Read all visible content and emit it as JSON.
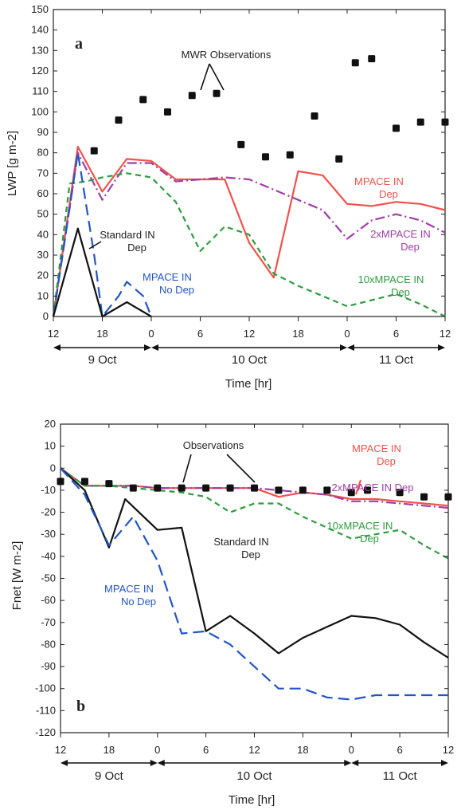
{
  "chart_data": [
    {
      "type": "line",
      "panel_label": "a",
      "ylabel": "LWP [g m-2]",
      "xlabel": "Time [hr]",
      "x_unit": "hours from 12 on 9 Oct",
      "xlim": [
        0,
        48
      ],
      "ylim": [
        0,
        150
      ],
      "y_ticks": [
        0,
        10,
        20,
        30,
        40,
        50,
        60,
        70,
        80,
        90,
        100,
        110,
        120,
        130,
        140,
        150
      ],
      "x_ticks": [
        0,
        6,
        12,
        18,
        24,
        30,
        36,
        42,
        48
      ],
      "x_tick_labels": [
        "12",
        "18",
        "0",
        "6",
        "12",
        "18",
        "0",
        "6",
        "12"
      ],
      "day_ranges": [
        {
          "label": "9 Oct",
          "start": 0,
          "end": 12
        },
        {
          "label": "10 Oct",
          "start": 12,
          "end": 36
        },
        {
          "label": "11 Oct",
          "start": 36,
          "end": 48
        }
      ],
      "observations": {
        "name": "MWR Observations",
        "x": [
          5,
          8,
          11,
          14,
          17,
          20,
          23,
          26,
          29,
          32,
          35,
          37,
          39,
          42,
          45,
          48
        ],
        "y": [
          81,
          96,
          106,
          100,
          108,
          109,
          84,
          78,
          79,
          98,
          77,
          124,
          126,
          92,
          95,
          95
        ]
      },
      "series": [
        {
          "name": "MPACE IN Dep",
          "label_lines": [
            "MPACE IN",
            "Dep"
          ],
          "color": "#f0524b",
          "dash": "solid",
          "x": [
            0,
            3,
            6,
            9,
            12,
            15,
            18,
            21,
            24,
            27,
            30,
            33,
            36,
            39,
            42,
            45,
            48
          ],
          "y": [
            0,
            83,
            61,
            77,
            76,
            67,
            67,
            67,
            36,
            19,
            71,
            69,
            55,
            54,
            56,
            55,
            52
          ]
        },
        {
          "name": "2xMPACE IN Dep",
          "label_lines": [
            "2xMPACE IN",
            "Dep"
          ],
          "color": "#a13ca8",
          "dash": "dashdot",
          "x": [
            0,
            3,
            6,
            9,
            12,
            15,
            18,
            21,
            24,
            27,
            30,
            33,
            36,
            39,
            42,
            45,
            48
          ],
          "y": [
            0,
            80,
            57,
            75,
            75,
            66,
            67,
            68,
            67,
            62,
            57,
            52,
            38,
            47,
            50,
            47,
            41
          ]
        },
        {
          "name": "10xMPACE IN Dep",
          "label_lines": [
            "10xMPACE IN",
            "Dep"
          ],
          "color": "#2e9b3e",
          "dash": "dashed",
          "x": [
            0,
            2,
            4,
            6,
            9,
            12,
            15,
            18,
            21,
            24,
            27,
            30,
            33,
            36,
            39,
            42,
            45,
            48
          ],
          "y": [
            0,
            65,
            66,
            68,
            70,
            68,
            56,
            32,
            44,
            40,
            21,
            15,
            10,
            5,
            8,
            11,
            6,
            0
          ]
        },
        {
          "name": "MPACE IN No Dep",
          "label_lines": [
            "MPACE IN",
            "No Dep"
          ],
          "color": "#2255c4",
          "dash": "longdash",
          "x": [
            0,
            3,
            5,
            6,
            8,
            9,
            11,
            12
          ],
          "y": [
            0,
            80,
            30,
            0,
            10,
            17,
            10,
            0
          ]
        },
        {
          "name": "Standard IN Dep",
          "label_lines": [
            "Standard IN",
            "Dep"
          ],
          "color": "#111111",
          "dash": "solid",
          "x": [
            0,
            3,
            6,
            9,
            12
          ],
          "y": [
            0,
            43,
            0,
            7,
            0
          ]
        }
      ]
    },
    {
      "type": "line",
      "panel_label": "b",
      "ylabel": "Fnet [W m-2]",
      "xlabel": "Time [hr]",
      "x_unit": "hours from 12 on 9 Oct",
      "xlim": [
        0,
        48
      ],
      "ylim": [
        -120,
        20
      ],
      "y_ticks": [
        20,
        10,
        0,
        -10,
        -20,
        -30,
        -40,
        -50,
        -60,
        -70,
        -80,
        -90,
        -100,
        -110,
        -120
      ],
      "x_ticks": [
        0,
        6,
        12,
        18,
        24,
        30,
        36,
        42,
        48
      ],
      "x_tick_labels": [
        "12",
        "18",
        "0",
        "6",
        "12",
        "18",
        "0",
        "6",
        "12"
      ],
      "day_ranges": [
        {
          "label": "9 Oct",
          "start": 0,
          "end": 12
        },
        {
          "label": "10 Oct",
          "start": 12,
          "end": 36
        },
        {
          "label": "11 Oct",
          "start": 36,
          "end": 48
        }
      ],
      "observations": {
        "name": "Observations",
        "x": [
          0,
          3,
          6,
          9,
          12,
          15,
          18,
          21,
          24,
          27,
          30,
          33,
          36,
          38,
          42,
          45,
          48
        ],
        "y": [
          -6,
          -6,
          -7,
          -9,
          -9,
          -9,
          -9,
          -9,
          -9,
          -10,
          -10,
          -10,
          -11,
          -10,
          -11,
          -13,
          -13
        ]
      },
      "series": [
        {
          "name": "MPACE IN Dep",
          "label_lines": [
            "MPACE IN",
            "Dep"
          ],
          "color": "#f0524b",
          "dash": "solid",
          "x": [
            0,
            3,
            6,
            9,
            12,
            15,
            18,
            21,
            24,
            27,
            30,
            33,
            36,
            39,
            42,
            45,
            48
          ],
          "y": [
            0,
            -8,
            -8,
            -8,
            -9,
            -9,
            -9,
            -9,
            -9,
            -13,
            -11,
            -12,
            -14,
            -14,
            -15,
            -16,
            -17
          ]
        },
        {
          "name": "2xMPACE IN Dep",
          "label_lines": [
            "2xMPACE IN Dep"
          ],
          "color": "#a13ca8",
          "dash": "dashdot",
          "x": [
            0,
            3,
            6,
            9,
            12,
            15,
            18,
            21,
            24,
            27,
            30,
            33,
            36,
            39,
            42,
            45,
            48
          ],
          "y": [
            0,
            -8,
            -8,
            -8,
            -9,
            -9,
            -9,
            -9,
            -9,
            -10,
            -11,
            -12,
            -15,
            -15,
            -16,
            -17,
            -18
          ]
        },
        {
          "name": "10xMPACE IN Dep",
          "label_lines": [
            "10xMPACE IN",
            "Dep"
          ],
          "color": "#2e9b3e",
          "dash": "dashed",
          "x": [
            0,
            3,
            6,
            9,
            12,
            15,
            18,
            21,
            24,
            27,
            30,
            33,
            36,
            39,
            42,
            45,
            48
          ],
          "y": [
            0,
            -8,
            -8,
            -9,
            -10,
            -11,
            -13,
            -20,
            -16,
            -16,
            -22,
            -27,
            -32,
            -30,
            -28,
            -35,
            -41
          ]
        },
        {
          "name": "Standard IN Dep",
          "label_lines": [
            "Standard IN",
            "Dep"
          ],
          "color": "#111111",
          "dash": "solid",
          "x": [
            0,
            3,
            6,
            8,
            12,
            15,
            18,
            21,
            24,
            27,
            30,
            33,
            36,
            39,
            42,
            45,
            48
          ],
          "y": [
            0,
            -10,
            -36,
            -14,
            -28,
            -27,
            -74,
            -67,
            -75,
            -84,
            -77,
            -72,
            -67,
            -68,
            -71,
            -79,
            -86
          ]
        },
        {
          "name": "MPACE IN No Dep",
          "label_lines": [
            "MPACE IN",
            "No Dep"
          ],
          "color": "#2255c4",
          "dash": "longdash",
          "x": [
            0,
            3,
            6,
            9,
            12,
            15,
            18,
            21,
            24,
            27,
            30,
            33,
            36,
            39,
            42,
            45,
            48
          ],
          "y": [
            0,
            -12,
            -35,
            -22,
            -42,
            -75,
            -74,
            -80,
            -90,
            -100,
            -100,
            -104,
            -105,
            -103,
            -103,
            -103,
            -103
          ]
        }
      ]
    }
  ]
}
